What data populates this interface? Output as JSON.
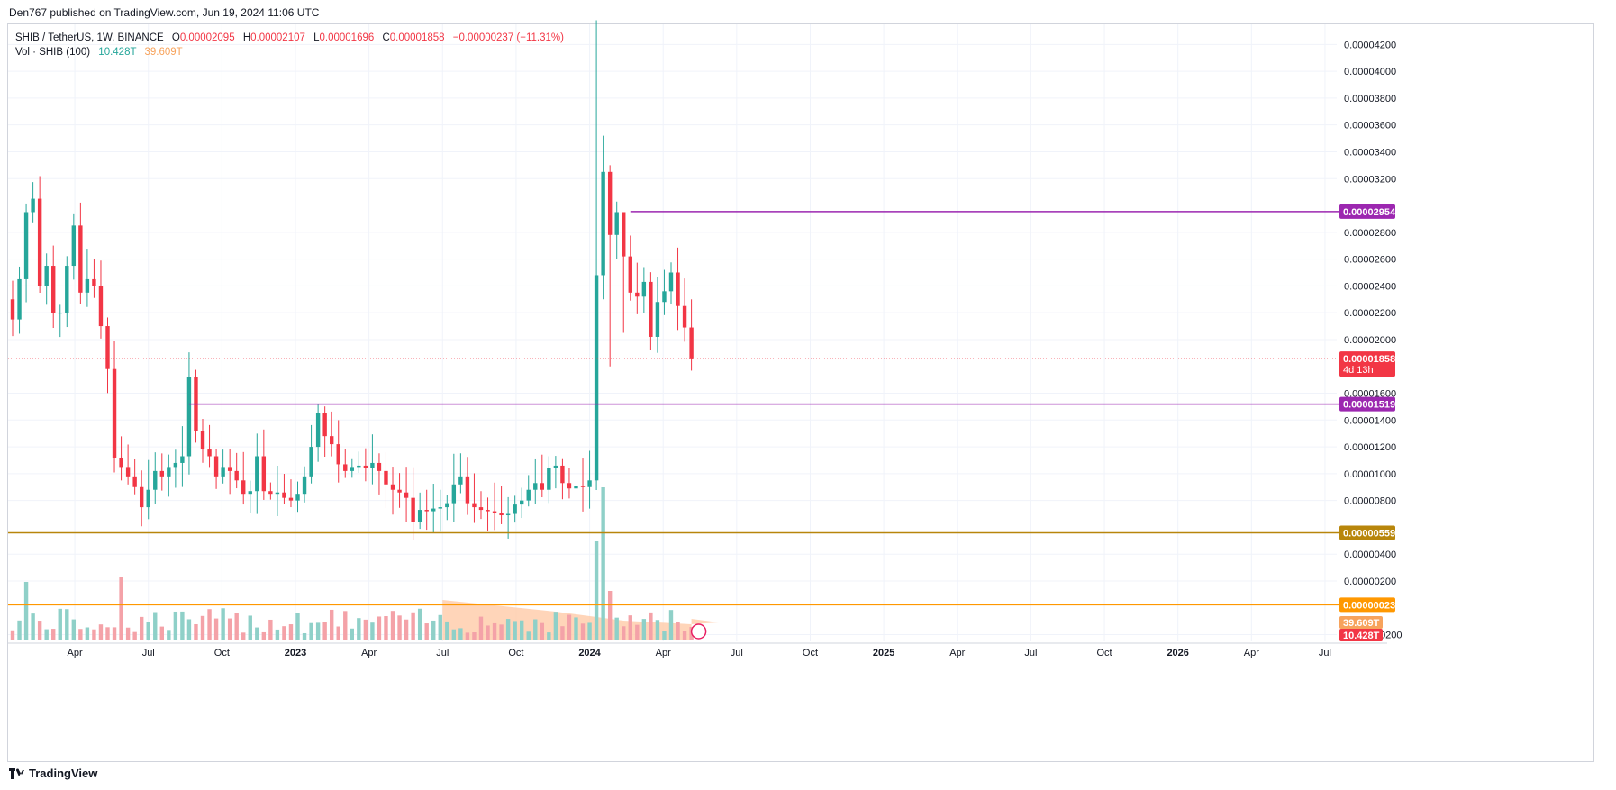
{
  "header": {
    "credit": "Den767 published on TradingView.com, Jun 19, 2024 11:06 UTC"
  },
  "legend": {
    "symbol": "SHIB / TetherUS, 1W, BINANCE",
    "open_label": "O",
    "open": "0.00002095",
    "high_label": "H",
    "high": "0.00002107",
    "low_label": "L",
    "low": "0.00001696",
    "close_label": "C",
    "close": "0.00001858",
    "change": "−0.00000237 (−11.31%)",
    "vol_label": "Vol · SHIB (100)",
    "vol_value": "10.428T",
    "vol_ma": "39.609T"
  },
  "footer": {
    "brand": "TradingView",
    "icon": "tradingview-logo-icon"
  },
  "colors": {
    "up": "#26a69a",
    "down": "#f23645",
    "vol_up": "#8fd0c8",
    "vol_down": "#f4a2a8",
    "vol_ma_fill": "#ffcba8",
    "level_purple": "#9c27b0",
    "level_gold": "#b8860b",
    "level_orange": "#ff9800",
    "grid": "#f0f3fa"
  },
  "chart_data": {
    "type": "candlestick",
    "symbol": "SHIB / TetherUS",
    "interval": "1W",
    "exchange": "BINANCE",
    "y_axis_labels": [
      "0.00004200",
      "0.00004000",
      "0.00003800",
      "0.00003600",
      "0.00003400",
      "0.00003200",
      "0.00002800",
      "0.00002600",
      "0.00002400",
      "0.00002200",
      "0.00002000",
      "0.00001600",
      "0.00001400",
      "0.00001200",
      "0.00001000",
      "0.00000800",
      "0.00000400",
      "0.00000200",
      "−0.00000200"
    ],
    "y_axis_values": [
      4.2e-05,
      4e-05,
      3.8e-05,
      3.6e-05,
      3.4e-05,
      3.2e-05,
      2.8e-05,
      2.6e-05,
      2.4e-05,
      2.2e-05,
      2e-05,
      1.6e-05,
      1.4e-05,
      1.2e-05,
      1e-05,
      8e-06,
      4e-06,
      2e-06,
      -2e-06
    ],
    "ylim": [
      -2.5e-06,
      4.35e-05
    ],
    "x_axis_labels": [
      {
        "label": "Apr",
        "week": 11,
        "bold": false
      },
      {
        "label": "Jul",
        "week": 24,
        "bold": false
      },
      {
        "label": "Oct",
        "week": 37,
        "bold": false
      },
      {
        "label": "2023",
        "week": 50,
        "bold": true
      },
      {
        "label": "Apr",
        "week": 63,
        "bold": false
      },
      {
        "label": "Jul",
        "week": 76,
        "bold": false
      },
      {
        "label": "Oct",
        "week": 89,
        "bold": false
      },
      {
        "label": "2024",
        "week": 102,
        "bold": true
      },
      {
        "label": "Apr",
        "week": 115,
        "bold": false
      },
      {
        "label": "Jul",
        "week": 128,
        "bold": false
      },
      {
        "label": "Oct",
        "week": 141,
        "bold": false
      },
      {
        "label": "2025",
        "week": 154,
        "bold": true
      },
      {
        "label": "Apr",
        "week": 167,
        "bold": false
      },
      {
        "label": "Jul",
        "week": 180,
        "bold": false
      },
      {
        "label": "Oct",
        "week": 193,
        "bold": false
      },
      {
        "label": "2026",
        "week": 206,
        "bold": true
      },
      {
        "label": "Apr",
        "week": 219,
        "bold": false
      },
      {
        "label": "Jul",
        "week": 232,
        "bold": false
      }
    ],
    "last_week_index": 125,
    "total_weeks_visible": 244,
    "candles_close": [
      2.15,
      2.45,
      2.95,
      3.05,
      2.4,
      2.55,
      2.2,
      2.2,
      2.55,
      2.85,
      2.35,
      2.45,
      2.4,
      2.1,
      1.78,
      1.12,
      1.05,
      0.98,
      0.9,
      0.75,
      0.88,
      1.02,
      0.98,
      1.05,
      1.08,
      1.13,
      1.72,
      1.32,
      1.18,
      1.13,
      0.98,
      1.05,
      1.02,
      0.95,
      0.85,
      0.87,
      1.13,
      0.87,
      0.85,
      0.86,
      0.82,
      0.8,
      0.85,
      0.98,
      1.2,
      1.45,
      1.28,
      1.22,
      1.07,
      1.02,
      1.05,
      1.06,
      1.04,
      1.08,
      1.02,
      0.92,
      0.88,
      0.86,
      0.82,
      0.64,
      0.73,
      0.72,
      0.74,
      0.75,
      0.78,
      0.92,
      0.98,
      0.78,
      0.75,
      0.73,
      0.72,
      0.71,
      0.69,
      0.7,
      0.77,
      0.8,
      0.88,
      0.93,
      0.88,
      1.04,
      1.06,
      0.93,
      0.89,
      0.91,
      0.9,
      0.95,
      2.48,
      3.25,
      2.78,
      2.95,
      2.62,
      2.35,
      2.32,
      2.43,
      2.02,
      2.28,
      2.36,
      2.5,
      2.25,
      2.09,
      1.86
    ],
    "price_levels": [
      {
        "value": "0.00002954",
        "color": "#9c27b0"
      },
      {
        "value": "0.00001519",
        "color": "#9c27b0"
      },
      {
        "value": "0.00000559",
        "color": "#b8860b"
      },
      {
        "value": "0.00000023",
        "color": "#ff9800"
      }
    ],
    "last_price": {
      "value": "0.00001858",
      "countdown": "4d 13h",
      "color": "#f23645"
    },
    "volume_badges": [
      {
        "value": "39.609T",
        "color": "#f7a35c"
      },
      {
        "value": "10.428T",
        "color": "#f23645"
      }
    ]
  }
}
